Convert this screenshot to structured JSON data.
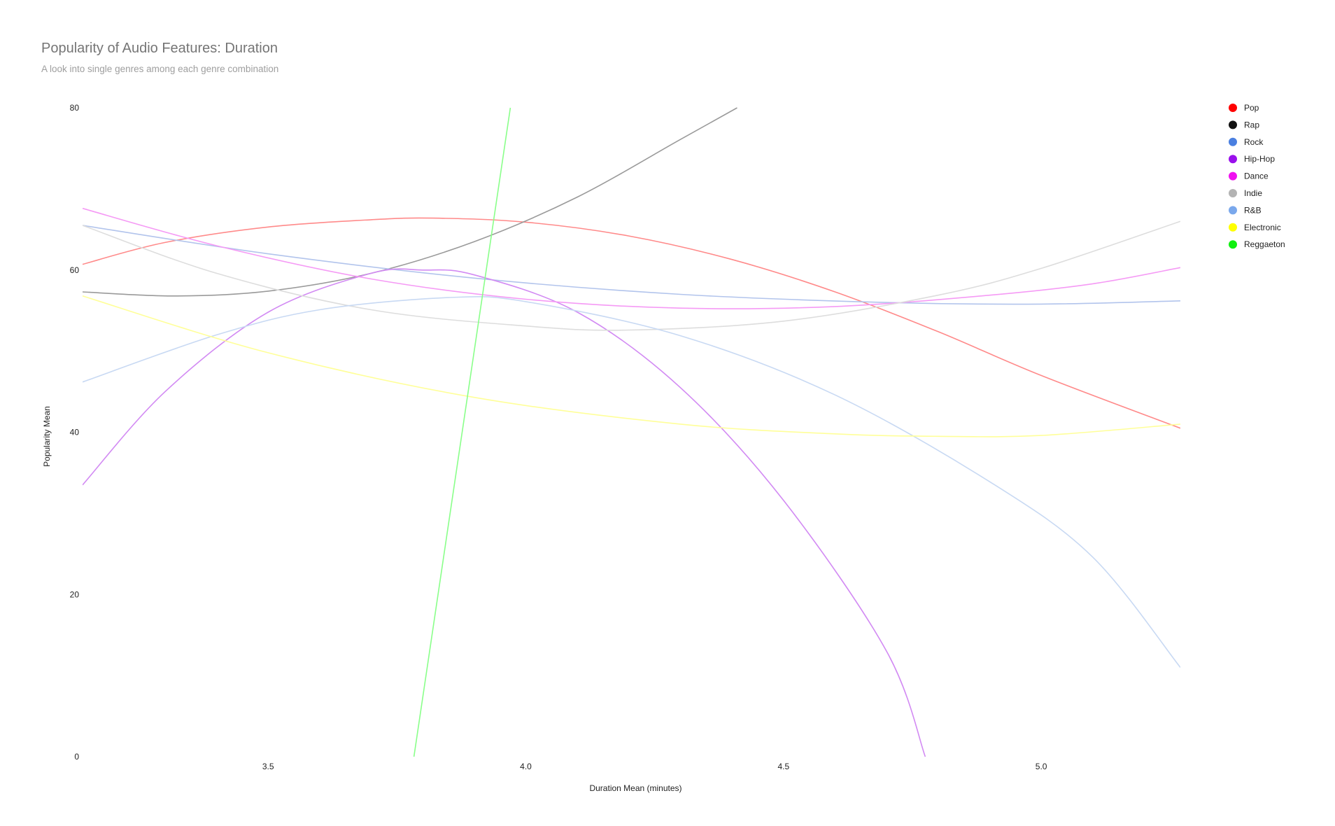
{
  "chart_data": {
    "type": "line",
    "title": "Popularity of Audio Features: Duration",
    "subtitle": "A look into single genres among each genre combination",
    "xlabel": "Duration Mean (minutes)",
    "ylabel": "Popularity Mean",
    "xlim": [
      3.14,
      5.27
    ],
    "ylim": [
      0,
      80
    ],
    "xticks": [
      "3.5",
      "4.0",
      "4.5",
      "5.0"
    ],
    "yticks": [
      "0",
      "20",
      "40",
      "60",
      "80"
    ],
    "grid": false,
    "legend_position": "right",
    "series": [
      {
        "name": "Pop",
        "color": "#ff0000",
        "line_color": "#ff8a8a",
        "x": [
          3.14,
          3.3,
          3.5,
          3.7,
          3.82,
          4.0,
          4.2,
          4.4,
          4.6,
          4.8,
          5.0,
          5.27
        ],
        "y": [
          60.7,
          63.4,
          65.3,
          66.2,
          66.4,
          65.9,
          64.2,
          61.3,
          57.3,
          52.4,
          47.0,
          40.5
        ]
      },
      {
        "name": "Rap",
        "color": "#111111",
        "line_color": "#9a9a9a",
        "x": [
          3.14,
          3.32,
          3.5,
          3.7,
          3.9,
          4.1,
          4.3,
          4.41
        ],
        "y": [
          57.3,
          56.8,
          57.4,
          59.6,
          63.5,
          69.0,
          76.1,
          80.0
        ]
      },
      {
        "name": "Rock",
        "color": "#4a7fe0",
        "line_color": "#b2c4ec",
        "x": [
          3.14,
          3.5,
          3.9,
          4.3,
          4.7,
          5.0,
          5.27
        ],
        "y": [
          65.5,
          62.0,
          59.0,
          57.0,
          56.0,
          55.8,
          56.2
        ]
      },
      {
        "name": "Hip-Hop",
        "color": "#9a10ec",
        "line_color": "#d28af3",
        "x": [
          3.14,
          3.3,
          3.5,
          3.7,
          3.8,
          3.9,
          4.1,
          4.3,
          4.5,
          4.7,
          4.775
        ],
        "y": [
          33.5,
          45.0,
          54.8,
          59.6,
          60.0,
          59.4,
          54.8,
          45.5,
          31.6,
          13.0,
          0
        ]
      },
      {
        "name": "Dance",
        "color": "#f010f0",
        "line_color": "#f59af5",
        "x": [
          3.14,
          3.4,
          3.7,
          4.0,
          4.3,
          4.6,
          4.9,
          5.1,
          5.27
        ],
        "y": [
          67.6,
          63.0,
          58.9,
          56.4,
          55.3,
          55.5,
          56.9,
          58.3,
          60.3
        ]
      },
      {
        "name": "Indie",
        "color": "#b3b3b3",
        "line_color": "#dddddd",
        "x": [
          3.14,
          3.4,
          3.7,
          4.0,
          4.2,
          4.5,
          4.8,
          5.0,
          5.27
        ],
        "y": [
          65.5,
          59.6,
          55.1,
          53.1,
          52.6,
          53.7,
          56.9,
          60.2,
          66.0
        ]
      },
      {
        "name": "R&B",
        "color": "#7aa8ec",
        "line_color": "#c8d9f3",
        "x": [
          3.14,
          3.4,
          3.6,
          3.85,
          4.0,
          4.3,
          4.6,
          4.9,
          5.1,
          5.27
        ],
        "y": [
          46.2,
          52.0,
          55.1,
          56.6,
          56.1,
          51.9,
          44.6,
          33.9,
          24.6,
          11.0
        ]
      },
      {
        "name": "Electronic",
        "color": "#ffff00",
        "line_color": "#ffff99",
        "x": [
          3.14,
          3.5,
          3.9,
          4.3,
          4.6,
          4.8,
          5.0,
          5.27
        ],
        "y": [
          56.8,
          49.8,
          44.3,
          41.0,
          39.8,
          39.5,
          39.6,
          41.0
        ]
      },
      {
        "name": "Reggaeton",
        "color": "#10f010",
        "line_color": "#8aff8a",
        "x": [
          3.783,
          3.97
        ],
        "y": [
          0,
          80
        ]
      }
    ]
  }
}
